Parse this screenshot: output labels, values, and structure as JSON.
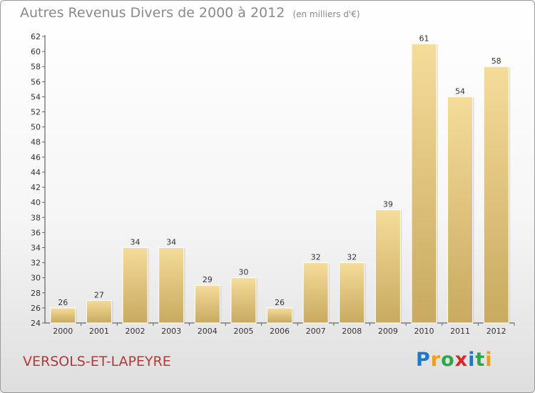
{
  "title": "Autres Revenus Divers de 2000 à 2012",
  "unit": "(en milliers d'€)",
  "town": "VERSOLS-ET-LAPEYRE",
  "logo": {
    "text": "Proxiti",
    "letters": [
      "P",
      "r",
      "o",
      "x",
      "i",
      "t",
      "i"
    ],
    "colors": [
      "#1e78c8",
      "#e8a020",
      "#2aa84a",
      "#d42a2a",
      "#1e78c8",
      "#2aa84a",
      "#e8a020"
    ]
  },
  "colors": {
    "bar_top": "#f5dc9a",
    "bar_bottom": "#c8aa60",
    "axis": "#444444",
    "grid_tick": "#666666"
  },
  "chart_data": {
    "type": "bar",
    "categories": [
      "2000",
      "2001",
      "2002",
      "2003",
      "2004",
      "2005",
      "2006",
      "2007",
      "2008",
      "2009",
      "2010",
      "2011",
      "2012"
    ],
    "values": [
      26,
      27,
      34,
      34,
      29,
      30,
      26,
      32,
      32,
      39,
      61,
      54,
      58
    ],
    "ylim": [
      24,
      62
    ],
    "yticks": [
      24,
      26,
      28,
      30,
      32,
      34,
      36,
      38,
      40,
      42,
      44,
      46,
      48,
      50,
      52,
      54,
      56,
      58,
      60,
      62
    ],
    "xlabel": "",
    "ylabel": "",
    "grid": false,
    "legend": "none"
  }
}
